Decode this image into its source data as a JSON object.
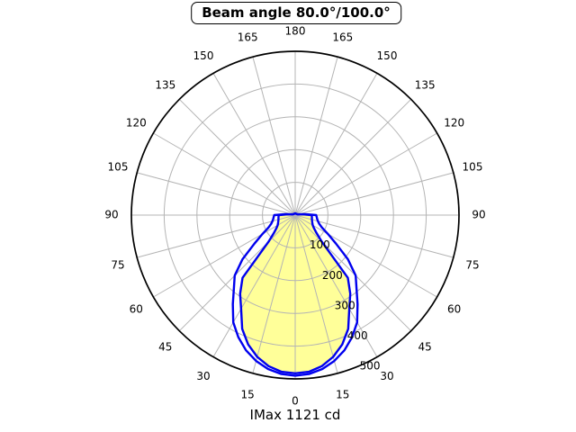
{
  "chart_data": {
    "type": "polar",
    "title": "Beam angle 80.0°/100.0°",
    "xlabel": "IMax 1121 cd",
    "units": "cd",
    "imax_cd": 1121,
    "beam_angles_deg": [
      80.0,
      100.0
    ],
    "zero_direction": "down",
    "grid": true,
    "r_max": 500,
    "r_ticks": [
      100,
      200,
      300,
      400,
      500
    ],
    "r_label_angle_deg": 22.5,
    "theta_tick_step_deg": 15,
    "theta_labels": [
      "0",
      "15",
      "30",
      "45",
      "60",
      "75",
      "90",
      "105",
      "120",
      "135",
      "150",
      "165",
      "180"
    ],
    "colors": {
      "curve": "#0000ee",
      "fill": "#ffff99",
      "grid": "#b4b4b4",
      "spine": "#000000",
      "text": "#000000",
      "background": "#ffffff"
    },
    "series": [
      {
        "name": "beam-80.0",
        "filled": true,
        "symmetric": true,
        "angles_deg": [
          0,
          5,
          10,
          15,
          20,
          25,
          30,
          35,
          40,
          45,
          50,
          55,
          60,
          65,
          70,
          75,
          80,
          85,
          90,
          95,
          100,
          110,
          120,
          135,
          150,
          165,
          180
        ],
        "intensity_cd": [
          483,
          480,
          468,
          448,
          420,
          383,
          330,
          293,
          250,
          115,
          85,
          70,
          62,
          58,
          55,
          53,
          52,
          51,
          50,
          25,
          12,
          7,
          6,
          5,
          5,
          5,
          5
        ]
      },
      {
        "name": "beam-100.0",
        "filled": false,
        "symmetric": true,
        "angles_deg": [
          0,
          5,
          10,
          15,
          20,
          25,
          30,
          35,
          40,
          45,
          50,
          55,
          60,
          65,
          70,
          75,
          80,
          85,
          90,
          95,
          100,
          110,
          120,
          135,
          150,
          165,
          180
        ],
        "intensity_cd": [
          490,
          487,
          477,
          461,
          439,
          411,
          378,
          332,
          291,
          261,
          210,
          152,
          115,
          90,
          78,
          72,
          68,
          66,
          64,
          30,
          14,
          8,
          6,
          5,
          5,
          5,
          5
        ]
      }
    ]
  }
}
